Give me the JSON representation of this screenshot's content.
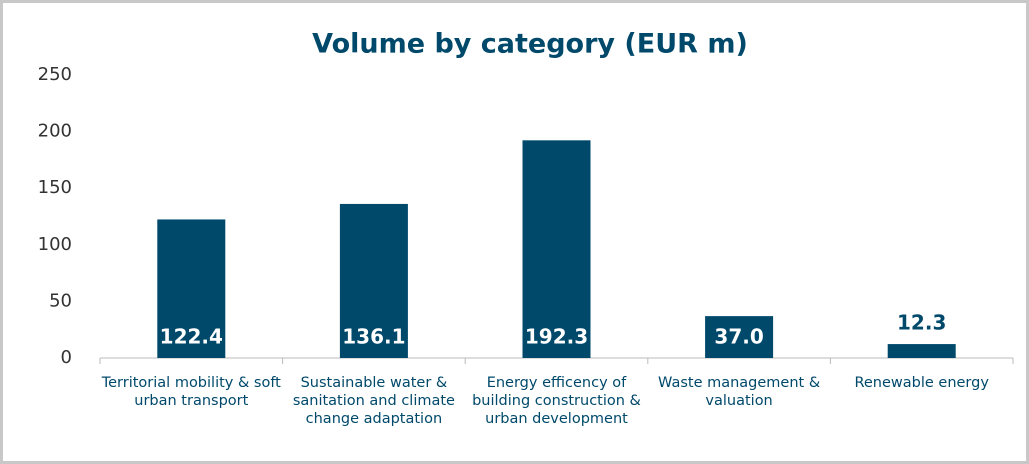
{
  "chart_data": {
    "type": "bar",
    "title": "Volume by category (EUR m)",
    "categories": [
      "Territorial mobility & soft urban transport",
      "Sustainable water & sanitation and climate change adaptation",
      "Energy efficency of building construction & urban development",
      "Waste management & valuation",
      "Renewable energy"
    ],
    "values": [
      122.4,
      136.1,
      192.3,
      37.0,
      12.3
    ],
    "value_labels": [
      "122.4",
      "136.1",
      "192.3",
      "37.0",
      "12.3"
    ],
    "color": "#00496b",
    "ylim": [
      0,
      250
    ],
    "yticks": [
      0,
      50,
      100,
      150,
      200,
      250
    ],
    "grid": false
  }
}
